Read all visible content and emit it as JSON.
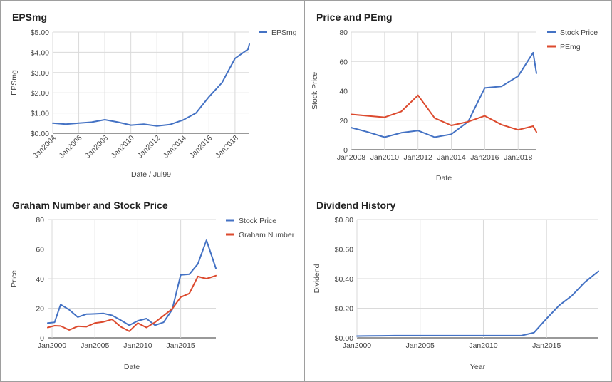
{
  "chart_data": [
    {
      "type": "line",
      "title": "EPSmg",
      "xlabel": "Date / Jul99",
      "ylabel": "EPSmg",
      "x_ticks": [
        "Jan2004",
        "Jan2006",
        "Jan2008",
        "Jan2010",
        "Jan2012",
        "Jan2014",
        "Jan2016",
        "Jan2018"
      ],
      "y_ticks": [
        "$0.00",
        "$1.00",
        "$2.00",
        "$3.00",
        "$4.00",
        "$5.00"
      ],
      "ylim": [
        0,
        5
      ],
      "xlim": [
        2004,
        2019.1
      ],
      "legend_position": "top-right",
      "grid": true,
      "series": [
        {
          "name": "EPSmg",
          "color": "#4472c4",
          "x": [
            2004,
            2005,
            2006,
            2007,
            2008,
            2009,
            2010,
            2011,
            2012,
            2013,
            2014,
            2015,
            2016,
            2017,
            2018,
            2019,
            2019.1
          ],
          "y": [
            0.5,
            0.45,
            0.5,
            0.55,
            0.67,
            0.55,
            0.4,
            0.45,
            0.36,
            0.43,
            0.65,
            1.0,
            1.8,
            2.5,
            3.7,
            4.15,
            4.4
          ]
        }
      ]
    },
    {
      "type": "line",
      "title": "Price and PEmg",
      "xlabel": "Date",
      "ylabel": "Stock Price",
      "x_ticks": [
        "Jan2008",
        "Jan2010",
        "Jan2012",
        "Jan2014",
        "Jan2016",
        "Jan2018"
      ],
      "y_ticks": [
        "0",
        "20",
        "40",
        "60",
        "80"
      ],
      "ylim": [
        0,
        80
      ],
      "xlim": [
        2008,
        2019.1
      ],
      "legend_position": "top-right",
      "grid": true,
      "series": [
        {
          "name": "Stock Price",
          "color": "#4472c4",
          "x": [
            2008,
            2009,
            2010,
            2011,
            2012,
            2013,
            2014,
            2015,
            2016,
            2017,
            2018,
            2018.9,
            2019.1
          ],
          "y": [
            15,
            12,
            8.5,
            11.5,
            13,
            8.5,
            10.5,
            19,
            42,
            43,
            50,
            66,
            52
          ]
        },
        {
          "name": "PEmg",
          "color": "#dc4a2e",
          "x": [
            2008,
            2009,
            2010,
            2011,
            2012,
            2013,
            2014,
            2015,
            2016,
            2017,
            2018,
            2018.9,
            2019.1
          ],
          "y": [
            24,
            23,
            22,
            26,
            37,
            21.5,
            16.5,
            19,
            23,
            17,
            13.5,
            16,
            12
          ]
        }
      ]
    },
    {
      "type": "line",
      "title": "Graham Number and Stock Price",
      "xlabel": "Date",
      "ylabel": "Price",
      "x_ticks": [
        "Jan2000",
        "Jan2005",
        "Jan2010",
        "Jan2015"
      ],
      "y_ticks": [
        "0",
        "20",
        "40",
        "60",
        "80"
      ],
      "ylim": [
        0,
        80
      ],
      "xlim": [
        1999.5,
        2019.1
      ],
      "legend_position": "top-right",
      "grid": true,
      "series": [
        {
          "name": "Stock Price",
          "color": "#4472c4",
          "x": [
            1999.5,
            2000.3,
            2001,
            2002,
            2003,
            2004,
            2005,
            2006,
            2007,
            2008,
            2009,
            2010,
            2011,
            2012,
            2013,
            2014,
            2015,
            2016,
            2017,
            2018,
            2019.1
          ],
          "y": [
            10,
            10.5,
            22.5,
            19,
            14,
            16,
            16.2,
            16.5,
            15.2,
            12,
            8.5,
            11.5,
            13,
            8.5,
            10.5,
            19,
            42.5,
            43,
            50,
            66,
            47
          ]
        },
        {
          "name": "Graham Number",
          "color": "#dc4a2e",
          "x": [
            1999.5,
            2000.3,
            2001,
            2002,
            2003,
            2004,
            2005,
            2006,
            2007,
            2008,
            2009,
            2010,
            2011,
            2012,
            2013,
            2014,
            2015,
            2016,
            2017,
            2018,
            2019.1
          ],
          "y": [
            7,
            8.2,
            8,
            5.3,
            7.8,
            7.5,
            10,
            10.8,
            12.5,
            7.5,
            4.5,
            10,
            7,
            10.5,
            15,
            19.5,
            27.5,
            30,
            41.5,
            40,
            42
          ]
        }
      ]
    },
    {
      "type": "line",
      "title": "Dividend History",
      "xlabel": "Year",
      "ylabel": "Dividend",
      "x_ticks": [
        "Jan2000",
        "Jan2005",
        "Jan2010",
        "Jan2015"
      ],
      "y_ticks": [
        "$0.00",
        "$0.20",
        "$0.40",
        "$0.60",
        "$0.80"
      ],
      "ylim": [
        0,
        0.8
      ],
      "xlim": [
        2000,
        2019.1
      ],
      "legend_position": "none",
      "grid": true,
      "series": [
        {
          "color": "#4472c4",
          "x": [
            2000,
            2001,
            2002,
            2003,
            2004,
            2005,
            2006,
            2007,
            2008,
            2009,
            2010,
            2011,
            2012,
            2013,
            2014,
            2015,
            2016,
            2017,
            2018,
            2019.1
          ],
          "y": [
            0.012,
            0.013,
            0.014,
            0.015,
            0.015,
            0.015,
            0.015,
            0.015,
            0.015,
            0.015,
            0.015,
            0.015,
            0.015,
            0.015,
            0.035,
            0.13,
            0.22,
            0.285,
            0.375,
            0.45
          ]
        }
      ]
    }
  ]
}
